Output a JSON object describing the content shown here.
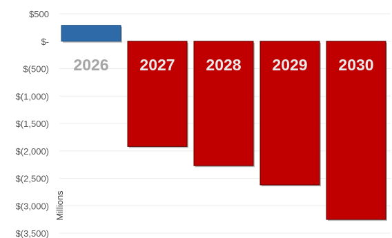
{
  "chart_data": {
    "type": "bar",
    "categories": [
      "2026",
      "2027",
      "2028",
      "2029",
      "2030"
    ],
    "values": [
      290,
      -1920,
      -2270,
      -2620,
      -3250
    ],
    "ylabel": "Millions",
    "ylim": [
      -3500,
      500
    ],
    "yticks": [
      500,
      0,
      -500,
      -1000,
      -1500,
      -2000,
      -2500,
      -3000,
      -3500
    ],
    "ytick_labels": [
      "$500",
      "$-",
      "$(500)",
      "$(1,000)",
      "$(1,500)",
      "$(2,000)",
      "$(2,500)",
      "$(3,000)",
      "$(3,500)"
    ],
    "grid": true,
    "colors": {
      "positive": "#2e6aa8",
      "negative": "#c00000",
      "label_on_bar": "#e8e8e8",
      "label_off_bar": "#a6a6a6",
      "grid": "#ececec"
    }
  }
}
